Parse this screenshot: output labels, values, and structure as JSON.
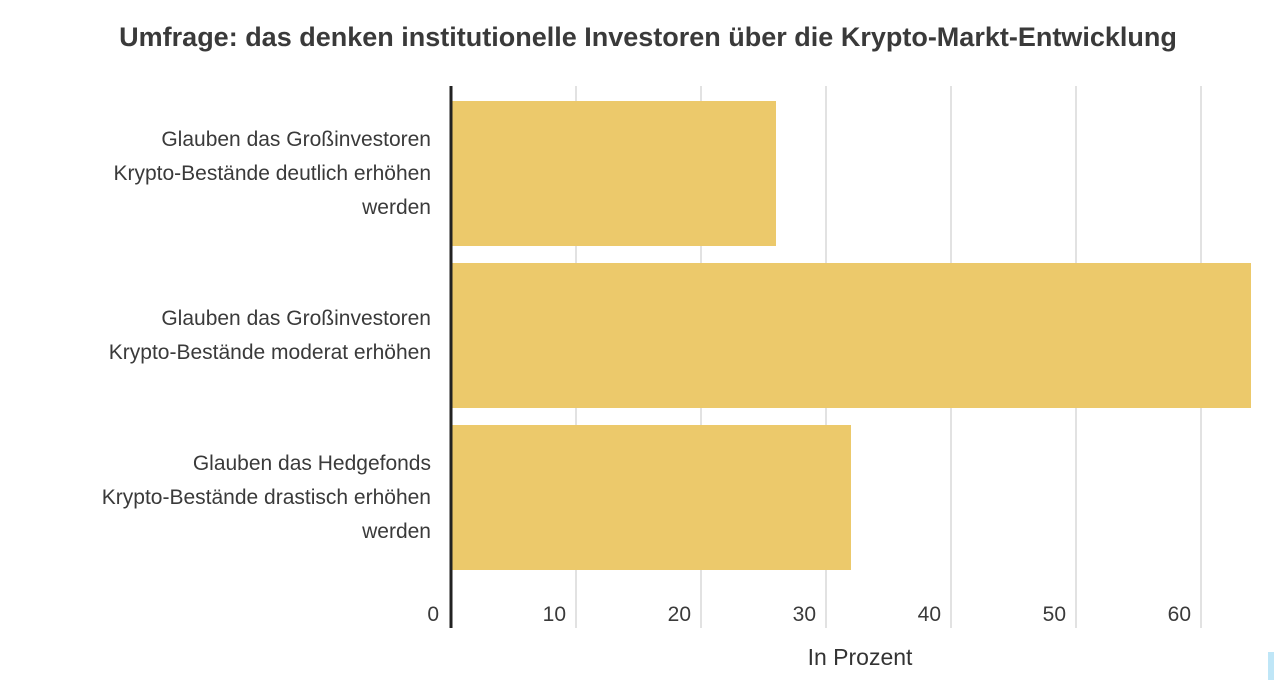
{
  "chart_data": {
    "type": "bar",
    "orientation": "horizontal",
    "title": "Umfrage: das denken institutionelle Investoren über die Krypto-Markt-Entwicklung",
    "categories": [
      [
        "Glauben das Großinvestoren",
        "Krypto-Bestände deutlich erhöhen",
        "werden"
      ],
      [
        "Glauben das Großinvestoren",
        "Krypto-Bestände moderat erhöhen"
      ],
      [
        "Glauben das Hedgefonds",
        "Krypto-Bestände drastisch erhöhen",
        "werden"
      ]
    ],
    "values": [
      26,
      64,
      32
    ],
    "xlabel": "In Prozent",
    "ylabel": "",
    "xlim": [
      0,
      64
    ],
    "xticks": [
      "0",
      "10",
      "20",
      "30",
      "40",
      "50",
      "60"
    ],
    "grid": true,
    "bar_color": "#ecc96b",
    "gridline_color": "#e2e2e2",
    "axis_color": "#222222"
  }
}
